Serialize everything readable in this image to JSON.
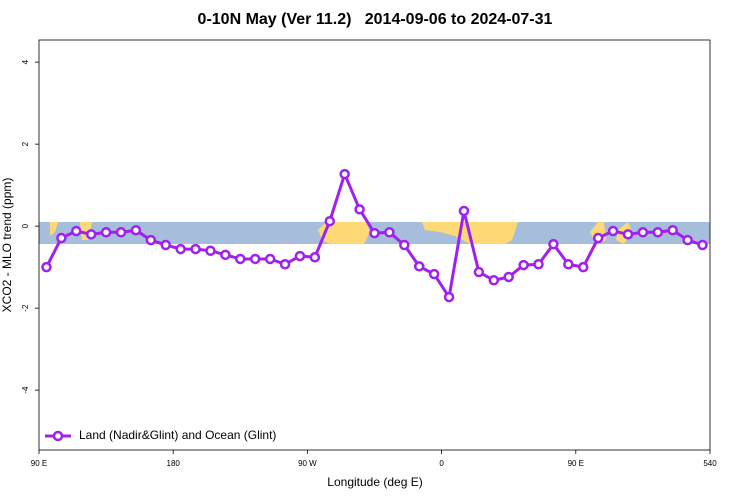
{
  "chart_data": {
    "type": "line",
    "title": "0-10N May (Ver 11.2)   2014-09-06 to 2024-07-31",
    "x_label": "Longitude (deg E)",
    "y_label": "XCO2 - MLO trend (ppm)",
    "xlim": [
      90,
      540
    ],
    "xticks": [
      {
        "value": 90,
        "label": "90 E"
      },
      180,
      {
        "value": 270,
        "label": "90 W"
      },
      {
        "value": 360,
        "label": "0"
      },
      {
        "value": 450,
        "label": "90 E"
      },
      540
    ],
    "ylim": [
      -5.46,
      4.54
    ],
    "yticks": [
      -4,
      -2,
      0,
      2,
      4
    ],
    "legend": "bottom-left",
    "series": [
      {
        "name": "Land (Nadir&Glint) and Ocean (Glint)",
        "color": "#a020f0",
        "x": [
          95,
          105,
          115,
          125,
          135,
          145,
          155,
          165,
          175,
          185,
          195,
          205,
          215,
          225,
          235,
          245,
          255,
          265,
          275,
          285,
          295,
          305,
          315,
          325,
          335,
          345,
          355,
          365,
          375,
          385,
          395,
          405,
          415,
          425,
          435,
          445,
          455,
          465,
          475,
          485,
          495,
          505,
          515,
          525,
          535
        ],
        "values": [
          -1.0,
          -0.29,
          -0.12,
          -0.2,
          -0.15,
          -0.15,
          -0.1,
          -0.34,
          -0.46,
          -0.56,
          -0.56,
          -0.6,
          -0.7,
          -0.8,
          -0.8,
          -0.8,
          -0.93,
          -0.73,
          -0.76,
          0.12,
          1.27,
          0.41,
          -0.17,
          -0.15,
          -0.46,
          -0.98,
          -1.17,
          -1.73,
          0.37,
          -1.12,
          -1.32,
          -1.24,
          -0.95,
          -0.93,
          -0.44,
          -0.93,
          -1.0,
          -0.29,
          -0.12,
          -0.2,
          -0.15,
          -0.15,
          -0.1,
          -0.34,
          -0.46
        ]
      }
    ]
  }
}
